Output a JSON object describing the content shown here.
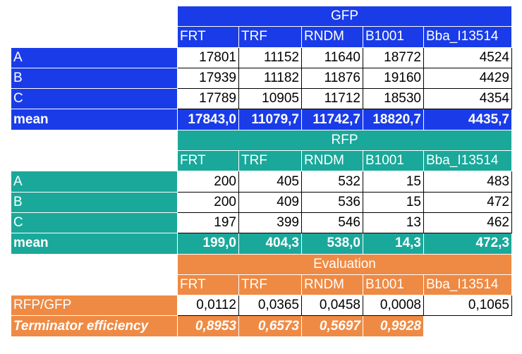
{
  "gfp": {
    "title": "GFP",
    "columns": [
      "FRT",
      "TRF",
      "RNDM",
      "B1001",
      "Bba_I13514"
    ],
    "rows": [
      {
        "label": "A",
        "values": [
          "17801",
          "11152",
          "11640",
          "18772",
          "4524"
        ]
      },
      {
        "label": "B",
        "values": [
          "17939",
          "11182",
          "11876",
          "19160",
          "4429"
        ]
      },
      {
        "label": "C",
        "values": [
          "17789",
          "10905",
          "11712",
          "18530",
          "4354"
        ]
      }
    ],
    "mean": {
      "label": "mean",
      "values": [
        "17843,0",
        "11079,7",
        "11742,7",
        "18820,7",
        "4435,7"
      ]
    }
  },
  "rfp": {
    "title": "RFP",
    "columns": [
      "FRT",
      "TRF",
      "RNDM",
      "B1001",
      "Bba_I13514"
    ],
    "rows": [
      {
        "label": "A",
        "values": [
          "200",
          "405",
          "532",
          "15",
          "483"
        ]
      },
      {
        "label": "B",
        "values": [
          "200",
          "409",
          "536",
          "15",
          "472"
        ]
      },
      {
        "label": "C",
        "values": [
          "197",
          "399",
          "546",
          "13",
          "462"
        ]
      }
    ],
    "mean": {
      "label": "mean",
      "values": [
        "199,0",
        "404,3",
        "538,0",
        "14,3",
        "472,3"
      ]
    }
  },
  "evaluation": {
    "title": "Evaluation",
    "columns": [
      "FRT",
      "TRF",
      "RNDM",
      "B1001",
      "Bba_I13514"
    ],
    "ratio": {
      "label": "RFP/GFP",
      "values": [
        "0,0112",
        "0,0365",
        "0,0458",
        "0,0008",
        "0,1065"
      ]
    },
    "efficiency": {
      "label": "Terminator efficiency",
      "values": [
        "0,8953",
        "0,6573",
        "0,5697",
        "0,9928"
      ]
    }
  },
  "colors": {
    "gfp": "#1a3ce8",
    "rfp": "#1aa89a",
    "evaluation": "#ef8a44"
  }
}
